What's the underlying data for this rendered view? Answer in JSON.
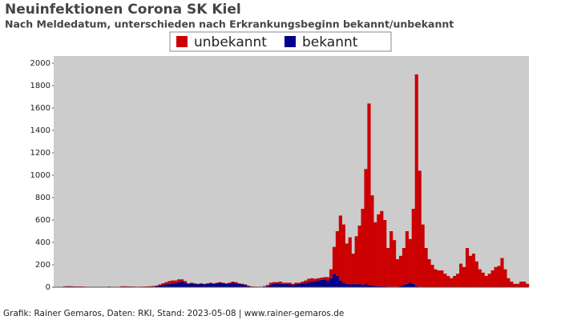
{
  "chart_data": {
    "type": "stacked-bar",
    "title": "Neuinfektionen Corona SK Kiel",
    "subtitle": "Nach Meldedatum, unterschieden nach Erkrankungsbeginn bekannt/unbekannt",
    "footer": "Grafik: Rainer Gemaros, Daten: RKI, Stand: 2023-05-08 | www.rainer-gemaros.de",
    "categories": [
      null,
      null,
      null,
      null,
      null,
      null,
      null,
      null,
      null,
      null,
      null,
      null,
      null,
      null,
      null,
      null,
      null,
      null,
      null,
      null,
      null,
      null,
      null,
      null,
      null,
      null,
      null,
      null,
      null,
      null,
      null,
      null,
      null,
      null,
      null,
      null,
      null,
      null,
      null,
      null,
      null,
      null,
      null,
      null,
      null,
      null,
      null,
      null,
      null,
      null,
      null,
      null,
      null,
      null,
      null,
      null,
      null,
      null,
      null,
      null,
      null,
      null,
      null,
      null,
      null,
      null,
      null,
      null,
      null,
      null,
      null,
      null,
      null,
      null,
      null,
      null,
      null,
      null,
      null,
      null,
      null,
      null,
      null,
      null,
      null,
      null,
      null,
      null,
      null,
      null,
      null,
      null,
      null,
      null,
      null,
      null,
      null,
      null,
      null,
      null,
      null,
      null,
      null,
      null,
      null,
      null,
      null,
      null,
      null,
      null,
      null,
      null,
      null,
      null,
      null,
      null,
      null,
      null,
      null,
      null,
      null,
      null,
      null,
      null,
      null,
      null,
      null,
      null,
      null,
      null,
      null,
      null,
      null,
      null,
      null,
      null,
      null,
      null,
      null,
      null,
      null,
      null,
      null,
      null,
      null,
      null,
      null,
      null,
      null,
      null
    ],
    "series": [
      {
        "name": "bekannt",
        "color": "#00008b",
        "values": [
          0,
          0,
          0,
          5,
          6,
          5,
          4,
          5,
          4,
          3,
          2,
          2,
          0,
          0,
          0,
          0,
          0,
          5,
          0,
          0,
          0,
          3,
          4,
          3,
          3,
          2,
          2,
          2,
          3,
          3,
          4,
          5,
          10,
          15,
          20,
          25,
          30,
          35,
          40,
          45,
          50,
          40,
          30,
          35,
          30,
          25,
          30,
          25,
          30,
          35,
          30,
          35,
          40,
          35,
          30,
          35,
          40,
          35,
          30,
          25,
          20,
          10,
          5,
          3,
          2,
          0,
          5,
          10,
          20,
          30,
          35,
          30,
          25,
          30,
          25,
          20,
          25,
          30,
          35,
          40,
          45,
          50,
          55,
          60,
          65,
          70,
          60,
          80,
          120,
          100,
          60,
          40,
          30,
          25,
          30,
          25,
          30,
          20,
          25,
          20,
          15,
          10,
          10,
          8,
          8,
          5,
          5,
          5,
          5,
          10,
          20,
          30,
          40,
          30,
          10,
          5,
          0,
          0,
          0,
          0,
          0,
          0,
          0,
          0,
          0,
          0,
          0,
          0,
          0,
          0,
          0,
          0,
          0,
          0,
          0,
          0,
          0,
          0,
          0,
          0,
          0,
          0,
          0,
          0,
          0,
          0,
          0,
          0,
          0,
          0
        ]
      },
      {
        "name": "unbekannt",
        "color": "#cc0000",
        "values": [
          0,
          0,
          0,
          3,
          3,
          4,
          3,
          2,
          3,
          2,
          2,
          1,
          0,
          0,
          0,
          0,
          0,
          0,
          0,
          0,
          0,
          5,
          5,
          4,
          3,
          3,
          2,
          3,
          3,
          4,
          5,
          6,
          5,
          10,
          15,
          20,
          25,
          25,
          20,
          25,
          20,
          15,
          5,
          5,
          5,
          5,
          5,
          5,
          5,
          5,
          5,
          5,
          5,
          5,
          5,
          5,
          10,
          10,
          5,
          5,
          5,
          3,
          2,
          2,
          2,
          0,
          5,
          10,
          20,
          15,
          10,
          20,
          15,
          10,
          15,
          10,
          15,
          10,
          15,
          20,
          30,
          30,
          20,
          20,
          20,
          20,
          30,
          80,
          240,
          400,
          580,
          520,
          360,
          420,
          270,
          430,
          520,
          680,
          1030,
          1620,
          805,
          570,
          640,
          672,
          592,
          345,
          495,
          415,
          245,
          270,
          330,
          470,
          390,
          670,
          1890,
          1035,
          560,
          350,
          250,
          200,
          160,
          150,
          150,
          120,
          100,
          80,
          100,
          120,
          210,
          180,
          350,
          280,
          300,
          230,
          160,
          130,
          100,
          120,
          150,
          180,
          190,
          260,
          160,
          80,
          50,
          30,
          30,
          50,
          50,
          30
        ]
      }
    ],
    "ylim": [
      0,
      2000
    ],
    "yticks": [
      0,
      200,
      400,
      600,
      800,
      1000,
      1200,
      1400,
      1600,
      1800,
      2000
    ],
    "grid": false,
    "legend": "top"
  }
}
